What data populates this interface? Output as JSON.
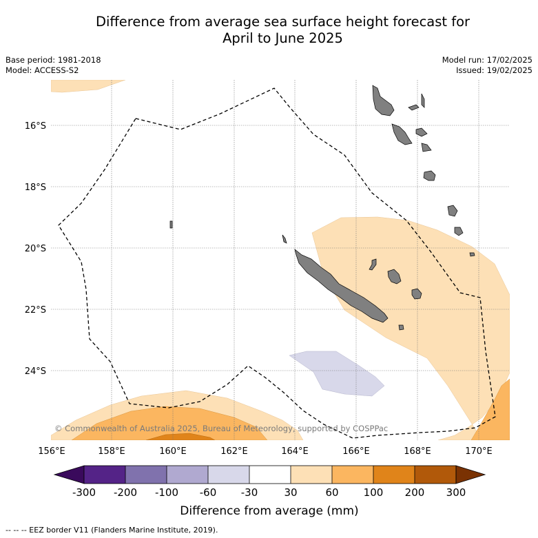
{
  "title": {
    "line1": "Difference from average sea surface height forecast for",
    "line2": "April to June 2025"
  },
  "meta_left": [
    "Base period: 1981-2018",
    "Model: ACCESS-S2"
  ],
  "meta_right": [
    "Model run: 17/02/2025",
    "Issued: 19/02/2025"
  ],
  "copyright": "© Commonwealth of Australia 2025, Bureau of Meteorology, supported by COSPPac",
  "x_ticks": [
    "156°E",
    "158°E",
    "160°E",
    "162°E",
    "164°E",
    "166°E",
    "168°E",
    "170°E"
  ],
  "y_ticks": [
    "16°S",
    "18°S",
    "20°S",
    "22°S",
    "24°S"
  ],
  "colorbar": {
    "label": "Difference from average (mm)",
    "tick_labels": [
      "-300",
      "-200",
      "-100",
      "-60",
      "-30",
      "30",
      "60",
      "100",
      "200",
      "300"
    ],
    "colors": [
      "#3a0a5c",
      "#542387",
      "#8072ad",
      "#b0a9d0",
      "#d8d8ea",
      "#ffffff",
      "#fde0b6",
      "#fbb660",
      "#e0841a",
      "#b1590a",
      "#7a3203"
    ]
  },
  "footer": "-- -- -- EEZ border V11 (Flanders Marine Institute, 2019).",
  "map_data": {
    "lon_range": [
      156,
      171
    ],
    "lat_range": [
      -26.3,
      -14.4
    ],
    "legend_classes_mm": [
      -300,
      -200,
      -100,
      -60,
      -30,
      30,
      60,
      100,
      200,
      300
    ],
    "land_color": "#808080",
    "eez_line_style": "dashed"
  }
}
